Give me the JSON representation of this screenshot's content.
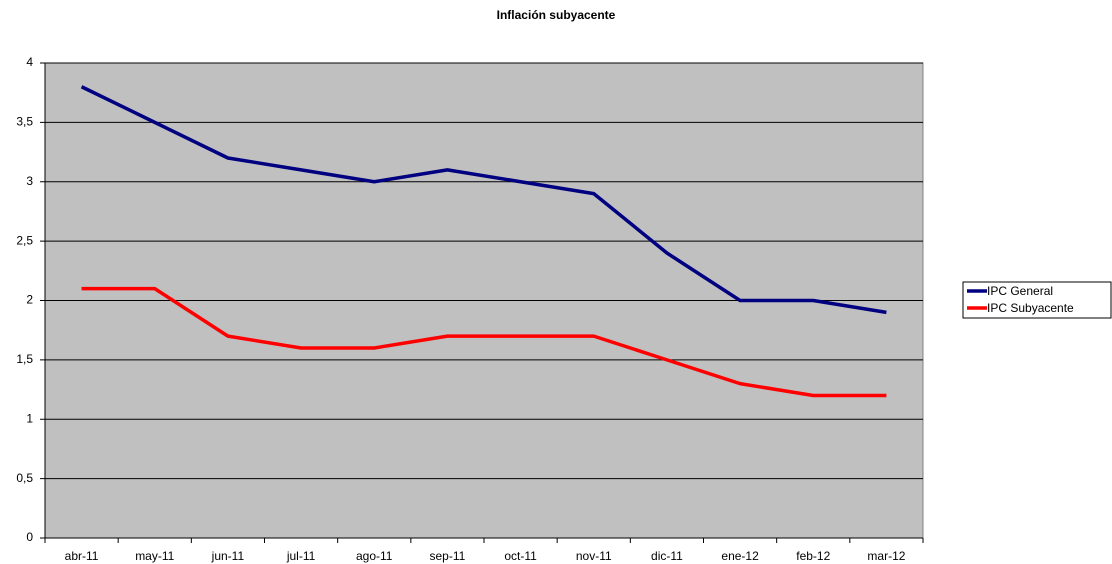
{
  "chart_data": {
    "type": "line",
    "title": "Inflación subyacente",
    "categories": [
      "abr-11",
      "may-11",
      "jun-11",
      "jul-11",
      "ago-11",
      "sep-11",
      "oct-11",
      "nov-11",
      "dic-11",
      "ene-12",
      "feb-12",
      "mar-12"
    ],
    "series": [
      {
        "name": "IPC General",
        "color": "#000080",
        "values": [
          3.8,
          3.5,
          3.2,
          3.1,
          3.0,
          3.1,
          3.0,
          2.9,
          2.4,
          2.0,
          2.0,
          1.9
        ]
      },
      {
        "name": "IPC Subyacente",
        "color": "#ff0000",
        "values": [
          2.1,
          2.1,
          1.7,
          1.6,
          1.6,
          1.7,
          1.7,
          1.7,
          1.5,
          1.3,
          1.2,
          1.2
        ]
      }
    ],
    "ylim": [
      0,
      4
    ],
    "yticks": [
      0,
      {
        "value": 0.5,
        "label": "0,5"
      },
      1,
      {
        "value": 1.5,
        "label": "1,5"
      },
      2,
      {
        "value": 2.5,
        "label": "2,5"
      },
      3,
      {
        "value": 3.5,
        "label": "3,5"
      },
      4
    ],
    "grid": true,
    "legend": "right"
  }
}
